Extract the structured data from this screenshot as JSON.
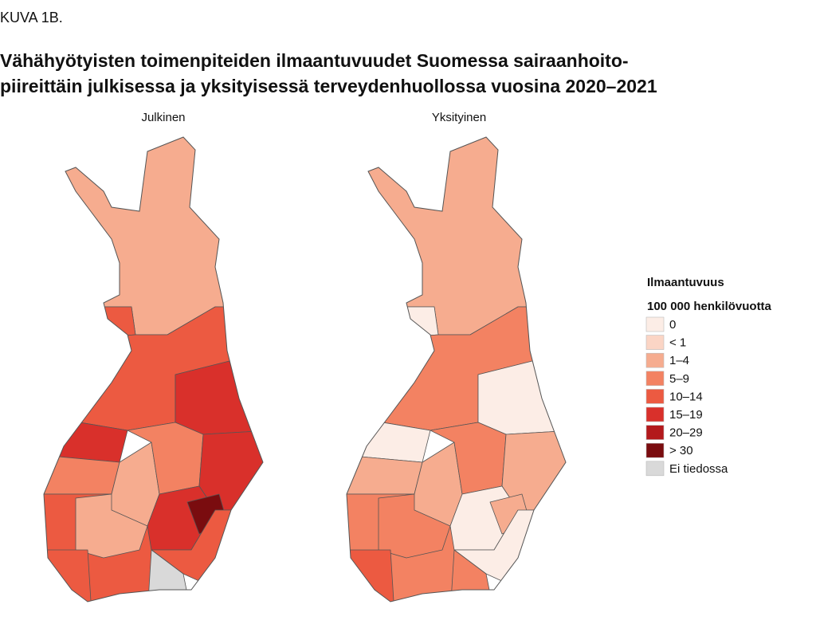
{
  "label": "KUVA 1B.",
  "title": [
    "Vähähyötyisten toimenpiteiden ilmaantuvuudet Suomessa sairaanhoito-",
    "piireittäin julkisessa ja yksityisessä terveydenhuollossa vuosina 2020–2021"
  ],
  "maps": [
    {
      "title": "Julkinen"
    },
    {
      "title": "Yksityinen"
    }
  ],
  "legend": {
    "title": "Ilmaantuvuus",
    "subtitle": "100 000 henkilövuotta",
    "items": [
      {
        "label": "0",
        "color": "#fcede6"
      },
      {
        "label": "< 1",
        "color": "#fbd5c5"
      },
      {
        "label": "1–4",
        "color": "#f6ac8f"
      },
      {
        "label": "5–9",
        "color": "#f38262"
      },
      {
        "label": "10–14",
        "color": "#ec5a41"
      },
      {
        "label": "15–19",
        "color": "#d9302b"
      },
      {
        "label": "20–29",
        "color": "#b3191c"
      },
      {
        "label": "> 30",
        "color": "#7a0c0f"
      },
      {
        "label": "Ei tiedossa",
        "color": "#d9d9d9"
      }
    ]
  }
}
